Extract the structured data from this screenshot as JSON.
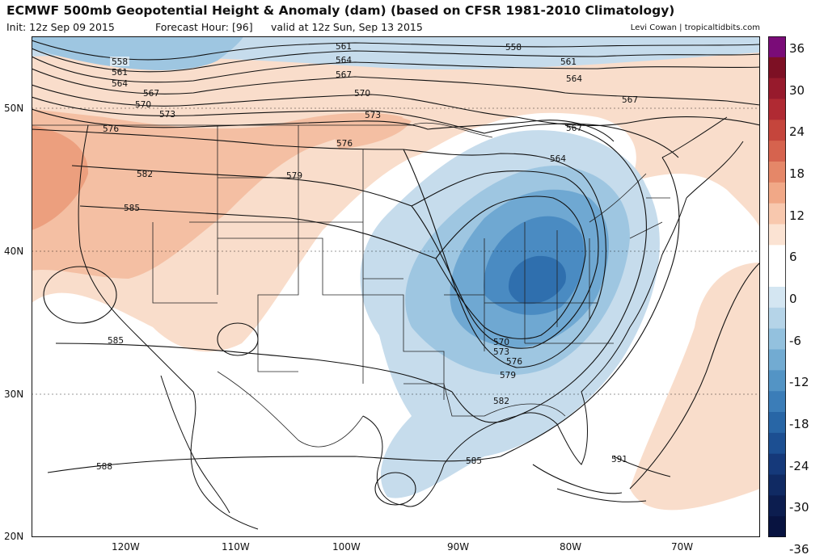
{
  "header": {
    "title": "ECMWF 500mb Geopotential Height & Anomaly (dam) (based on CFSR 1981-2010 Climatology)",
    "init": "Init: 12z Sep 09 2015",
    "forecast_hour": "Forecast Hour: [96]",
    "valid": "valid at 12z Sun, Sep 13 2015",
    "credit": "Levi Cowan | tropicaltidbits.com"
  },
  "axes": {
    "lat": [
      "50N",
      "40N",
      "30N",
      "20N"
    ],
    "lon": [
      "120W",
      "110W",
      "100W",
      "90W",
      "80W",
      "70W"
    ]
  },
  "contours": {
    "labels": [
      "558",
      "561",
      "564",
      "567",
      "570",
      "573",
      "576",
      "579",
      "582",
      "585",
      "588",
      "591"
    ]
  },
  "colorbar": {
    "labels": [
      "36",
      "30",
      "24",
      "18",
      "12",
      "6",
      "0",
      "-6",
      "-12",
      "-18",
      "-24",
      "-30",
      "-36"
    ],
    "colors": [
      "#7a0c78",
      "#7d1024",
      "#971a2c",
      "#b02a33",
      "#c5453c",
      "#d6634e",
      "#e58768",
      "#f1a887",
      "#f8c8ae",
      "#fbe3d3",
      "#ffffff",
      "#ffffff",
      "#d4e6f2",
      "#b5d4e8",
      "#93c1de",
      "#72abd2",
      "#5394c5",
      "#3b7db8",
      "#2866a6",
      "#1c4f92",
      "#15397a",
      "#102a63",
      "#0c1d4f",
      "#081340"
    ]
  },
  "anomaly_colors": {
    "pos1": "#f9ddcb",
    "pos2": "#f4bfa3",
    "pos3": "#ec9f7e",
    "neg1": "#c6dcec",
    "neg2": "#9ec6e1",
    "neg3": "#6fa8d2",
    "neg4": "#4a8bc2",
    "neg5": "#2f6fae"
  }
}
